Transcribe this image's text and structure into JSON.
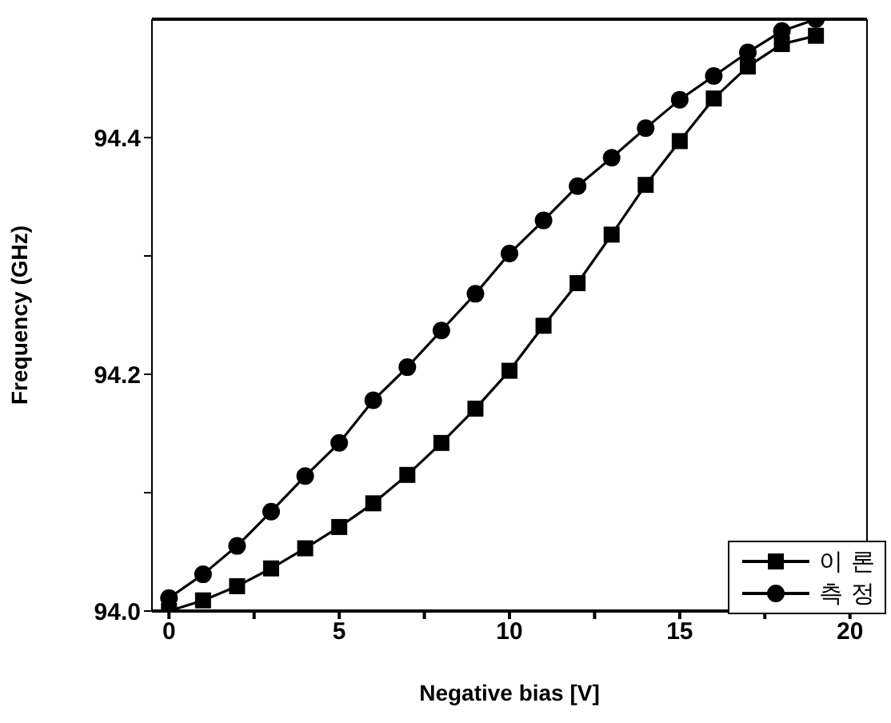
{
  "chart_data": {
    "type": "line",
    "xlabel": "Negative bias [V]",
    "ylabel": "Frequency (GHz)",
    "x": [
      0,
      1,
      2,
      3,
      4,
      5,
      6,
      7,
      8,
      9,
      10,
      11,
      12,
      13,
      14,
      15,
      16,
      17,
      18,
      19
    ],
    "series": [
      {
        "name": "이 론",
        "color": "#000000",
        "marker": "square",
        "values": [
          94.0,
          94.009,
          94.021,
          94.036,
          94.053,
          94.071,
          94.091,
          94.115,
          94.142,
          94.171,
          94.203,
          94.241,
          94.277,
          94.318,
          94.36,
          94.397,
          94.433,
          94.46,
          94.479,
          94.486
        ]
      },
      {
        "name": "측 정",
        "color": "#000000",
        "marker": "circle",
        "values": [
          94.011,
          94.031,
          94.055,
          94.084,
          94.114,
          94.142,
          94.178,
          94.206,
          94.237,
          94.268,
          94.302,
          94.33,
          94.359,
          94.383,
          94.408,
          94.432,
          94.452,
          94.472,
          94.49,
          94.5
        ]
      }
    ],
    "xlim": [
      -0.5,
      20.5
    ],
    "xticks": [
      0,
      {
        "value": 2.5,
        "label": null
      },
      5,
      {
        "value": 7.5,
        "label": null
      },
      10,
      {
        "value": 12.5,
        "label": null
      },
      15,
      {
        "value": 17.5,
        "label": null
      },
      20
    ],
    "ylim": [
      94.0,
      94.5
    ],
    "yticks": [
      {
        "value": 94.0,
        "label": "94.0"
      },
      {
        "value": 94.1,
        "label": null
      },
      {
        "value": 94.2,
        "label": "94.2"
      },
      {
        "value": 94.3,
        "label": null
      },
      {
        "value": 94.4,
        "label": "94.4"
      }
    ],
    "legend": "bottom right",
    "grid": false,
    "line_style": "solid"
  }
}
